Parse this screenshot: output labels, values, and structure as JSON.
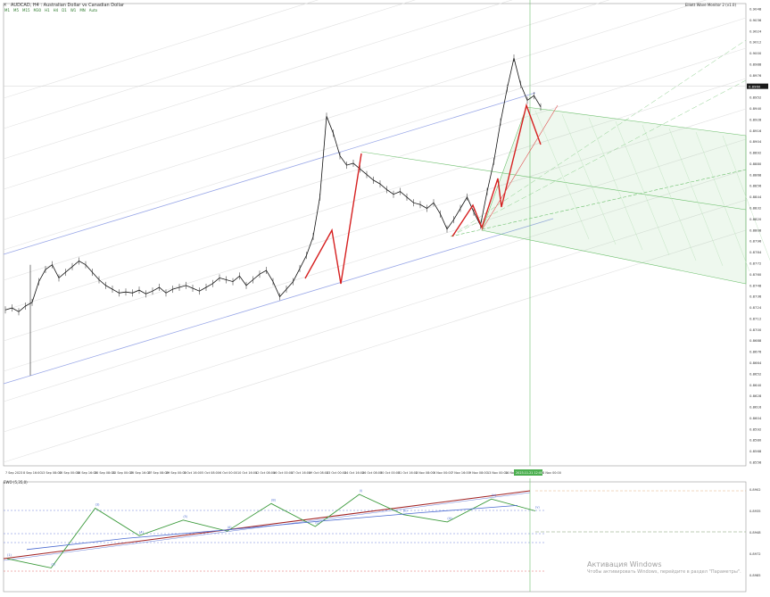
{
  "window": {
    "symbol_title": "AUDCAD, H4 : Australian Dollar vs Canadian Dollar",
    "indicator_name": "Elliott Wave Monitor 2 (v1.0)",
    "timeframes": [
      "M1",
      "M5",
      "M15",
      "M30",
      "H1",
      "H4",
      "D1",
      "W1",
      "MN",
      "Auto"
    ],
    "osc_title": "EWO  (5,35,0)",
    "activation_line1": "Активация Windows",
    "activation_line2": "Чтобы активировать Windows, перейдите в раздел \"Параметры\"."
  },
  "chart_data": [
    {
      "type": "line",
      "name": "price",
      "title": "",
      "price_ticks": [
        "0.9048",
        "0.9036",
        "0.9024",
        "0.9012",
        "0.9000",
        "0.8988",
        "0.8976",
        "0.8964",
        "0.8952",
        "0.8940",
        "0.8928",
        "0.8916",
        "0.8904",
        "0.8892",
        "0.8880",
        "0.8868",
        "0.8856",
        "0.8844",
        "0.8832",
        "0.8820",
        "0.8808",
        "0.8796",
        "0.8784",
        "0.8772",
        "0.8760",
        "0.8748",
        "0.8736",
        "0.8724",
        "0.8712",
        "0.8700",
        "0.8688",
        "0.8676",
        "0.8664",
        "0.8652",
        "0.8640",
        "0.8628",
        "0.8616",
        "0.8604",
        "0.8592",
        "0.8580",
        "0.8568",
        "0.8556"
      ],
      "ylim": [
        0.8556,
        0.9048
      ],
      "current_price": "0.8960",
      "time_ticks": [
        "7 Sep 2023",
        "8 Sep 16:00",
        "13 Sep 08:00",
        "15 Sep 00:00",
        "18 Sep 16:00",
        "20 Sep 08:00",
        "22 Sep 00:00",
        "25 Sep 16:00",
        "27 Sep 08:00",
        "29 Sep 00:00",
        "3 Oct 16:00",
        "5 Oct 08:00",
        "6 Oct 00:00",
        "10 Oct 16:00",
        "12 Oct 08:00",
        "16 Oct 00:00",
        "17 Oct 16:00",
        "19 Oct 08:00",
        "23 Oct 00:00",
        "24 Oct 16:00",
        "26 Oct 08:00",
        "30 Oct 00:00",
        "31 Oct 16:00",
        "2 Nov 08:00",
        "6 Nov 00:00",
        "7 Nov 16:00",
        "9 Nov 08:00",
        "13 Nov 00:00",
        "14 Nov 16:00",
        "16 Nov 08:00",
        "20 Nov 00:00"
      ],
      "highlight_time": "2023.11.21 12:00",
      "close": [
        0.8722,
        0.8724,
        0.872,
        0.8726,
        0.873,
        0.8752,
        0.8765,
        0.877,
        0.8756,
        0.8762,
        0.8768,
        0.8774,
        0.877,
        0.8762,
        0.8754,
        0.8748,
        0.8744,
        0.874,
        0.8741,
        0.874,
        0.8743,
        0.8739,
        0.8742,
        0.8746,
        0.874,
        0.8744,
        0.8746,
        0.8748,
        0.8745,
        0.8742,
        0.8746,
        0.875,
        0.8756,
        0.8754,
        0.8752,
        0.8758,
        0.8748,
        0.8754,
        0.876,
        0.8764,
        0.8752,
        0.8736,
        0.8744,
        0.8752,
        0.8766,
        0.878,
        0.88,
        0.8842,
        0.8928,
        0.891,
        0.8886,
        0.8876,
        0.8878,
        0.8872,
        0.8866,
        0.886,
        0.8856,
        0.885,
        0.8845,
        0.8848,
        0.8842,
        0.8836,
        0.8834,
        0.883,
        0.8836,
        0.8824,
        0.8808,
        0.8818,
        0.883,
        0.8842,
        0.8826,
        0.8812,
        0.8848,
        0.888,
        0.8922,
        0.8958,
        0.899,
        0.8962,
        0.8945,
        0.895,
        0.8938
      ]
    },
    {
      "type": "line",
      "name": "oscillator",
      "title": "",
      "series": [
        {
          "values": [
            0.3,
            0.2,
            0.85,
            0.55,
            0.72,
            0.6,
            0.9,
            0.65,
            1.0,
            0.78,
            0.7,
            0.95,
            0.82
          ]
        },
        {
          "values": [
            0.4,
            0.52,
            0.61,
            0.71,
            0.8,
            0.88
          ]
        }
      ],
      "wave_labels": [
        "(1)",
        "(2)",
        "(3)",
        "(4)",
        "(5)",
        "(A)",
        "(B)",
        "(C)",
        "(i)",
        "(ii)",
        "(iii)",
        "(iv)",
        "(v)"
      ],
      "price_labels": [
        "0.8902",
        "0.8935",
        "0.8948",
        "0.8972",
        "0.8985"
      ]
    }
  ]
}
